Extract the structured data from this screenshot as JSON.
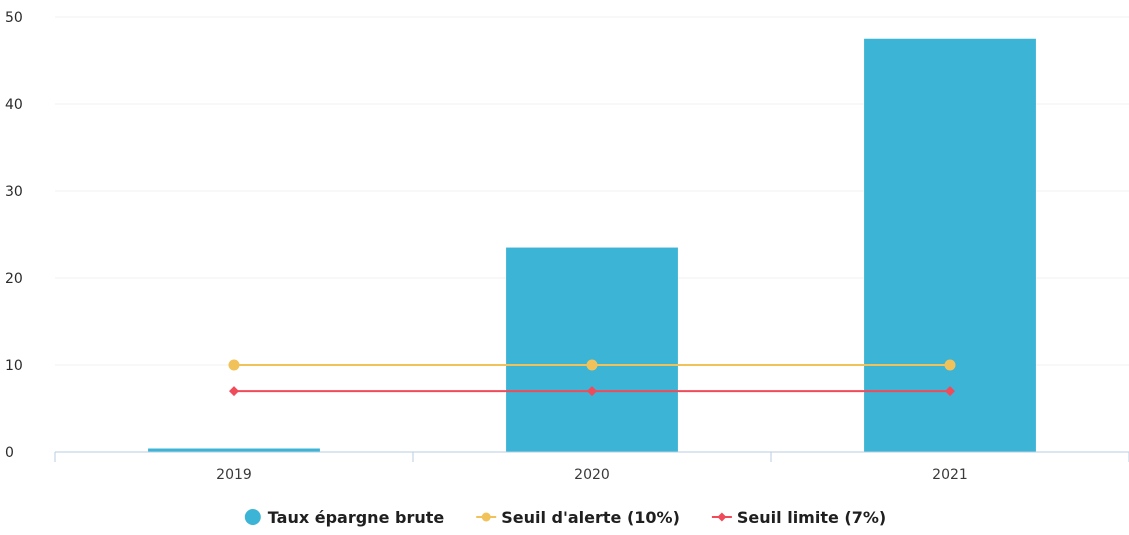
{
  "chart_data": {
    "type": "bar",
    "categories": [
      "2019",
      "2020",
      "2021"
    ],
    "ylim": [
      0,
      50
    ],
    "yticks": [
      0,
      10,
      20,
      30,
      40,
      50
    ],
    "grid": true,
    "legend_position": "bottom-center",
    "series": [
      {
        "name": "Taux épargne brute",
        "kind": "bar",
        "color": "#3cb4d6",
        "values": [
          0.4,
          23.5,
          47.5
        ]
      },
      {
        "name": "Seuil d'alerte (10%)",
        "kind": "line",
        "marker": "circle",
        "color": "#f2c25a",
        "values": [
          10,
          10,
          10
        ]
      },
      {
        "name": "Seuil limite (7%)",
        "kind": "line",
        "marker": "diamond",
        "color": "#f04b5a",
        "values": [
          7,
          7,
          7
        ]
      }
    ]
  }
}
